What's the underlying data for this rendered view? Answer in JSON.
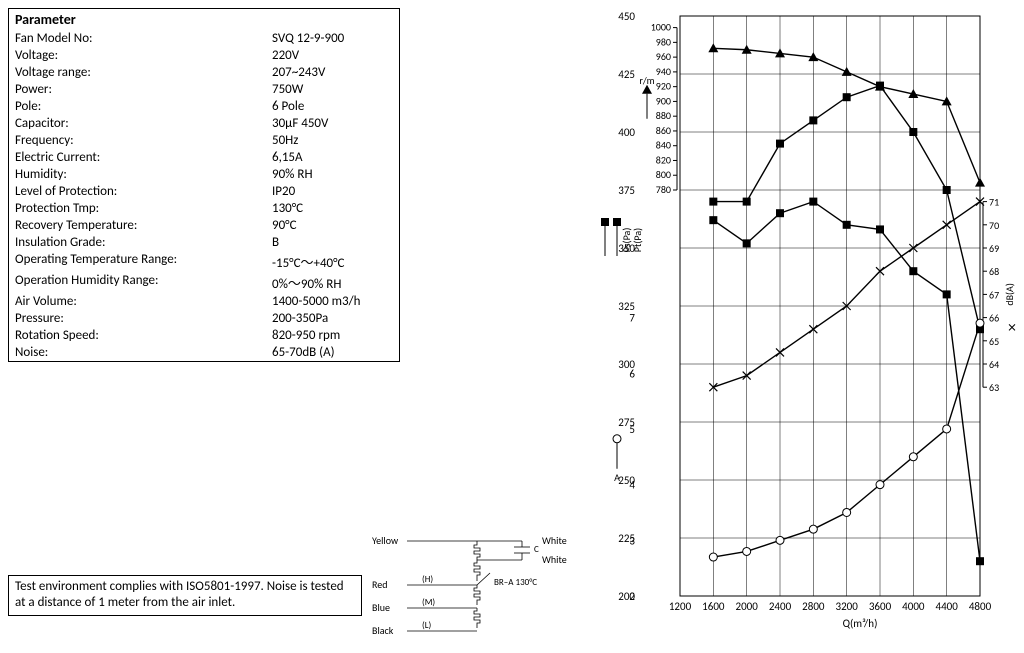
{
  "parameter_table": {
    "header": "Parameter",
    "rows": [
      {
        "label": "Fan Model No:",
        "value": "SVQ 12-9-900"
      },
      {
        "label": "Voltage:",
        "value": "220V"
      },
      {
        "label": "Voltage range:",
        "value": "207~243V"
      },
      {
        "label": "Power:",
        "value": "750W"
      },
      {
        "label": "Pole:",
        "value": "6 Pole"
      },
      {
        "label": "Capacitor:",
        "value": "30μF 450V"
      },
      {
        "label": "Frequency:",
        "value": "50Hz"
      },
      {
        "label": "Electric Current:",
        "value": "6,15A"
      },
      {
        "label": "Humidity:",
        "value": "90% RH"
      },
      {
        "label": "Level of Protection:",
        "value": "IP20"
      },
      {
        "label": "Protection Tmp:",
        "value": "130°C"
      },
      {
        "label": "Recovery Temperature:",
        "value": "90°C"
      },
      {
        "label": "Insulation Grade:",
        "value": "B"
      },
      {
        "label": "Operating Temperature Range:",
        "value": "-15°C～+40°C"
      },
      {
        "label": "Operation Humidity Range:",
        "value": "0%～90% RH"
      },
      {
        "label": "Air Volume:",
        "value": "1400-5000 m3/h"
      },
      {
        "label": "Pressure:",
        "value": "200-350Pa"
      },
      {
        "label": "Rotation Speed:",
        "value": "820-950 rpm"
      },
      {
        "label": "Noise:",
        "value": "65-70dB (A)"
      }
    ]
  },
  "wiring": {
    "labels": {
      "yellow": "Yellow",
      "white1": "White",
      "white2": "White",
      "red": "Red",
      "blue": "Blue",
      "black": "Black",
      "h": "(H)",
      "m": "(M)",
      "l": "(L)",
      "c": "C",
      "breaker": "BR–A 130°C"
    },
    "line_color": "#000000",
    "text_color": "#000000"
  },
  "note": "Test environment complies with ISO5801-1997. Noise is tested at a distance of 1 meter from the air inlet.",
  "chart": {
    "type": "multi-axis-line",
    "background_color": "#ffffff",
    "grid_color": "#000000",
    "grid_stroke": 0.5,
    "axis_stroke": 1,
    "font_size": 11,
    "line_color": "#000000",
    "xlabel": "Q(m³/h)",
    "x": {
      "min": 1200,
      "max": 4800,
      "step": 400
    },
    "y_pa": {
      "label": "",
      "min": 200,
      "max": 450,
      "step": 25,
      "side": "left-outer"
    },
    "y_rpm": {
      "label": "",
      "min": 780,
      "max": 1000,
      "step": 20,
      "side": "left-inner"
    },
    "y_amp": {
      "label": "",
      "min": 2,
      "max": 7,
      "step": 1,
      "side": "left-bottom"
    },
    "y_db": {
      "label": "",
      "min": 63,
      "max": 71,
      "step": 1,
      "side": "right"
    },
    "axis_legends": {
      "rpm": "r/m",
      "ps": "Ps(Pa)",
      "pt": "Pt(Pa)",
      "amp": "A",
      "db": "dB(A)"
    },
    "series": {
      "rpm": {
        "marker": "triangle",
        "axis": "y_rpm",
        "points": [
          [
            1600,
            972
          ],
          [
            2000,
            970
          ],
          [
            2400,
            965
          ],
          [
            2800,
            960
          ],
          [
            3200,
            940
          ],
          [
            3600,
            920
          ],
          [
            4000,
            910
          ],
          [
            4400,
            900
          ],
          [
            4800,
            790
          ]
        ]
      },
      "pt": {
        "marker": "square",
        "axis": "y_pa",
        "label": "Pt(Pa)",
        "points": [
          [
            1600,
            370
          ],
          [
            2000,
            370
          ],
          [
            2400,
            395
          ],
          [
            2800,
            405
          ],
          [
            3200,
            415
          ],
          [
            3600,
            420
          ],
          [
            4000,
            400
          ],
          [
            4400,
            375
          ],
          [
            4800,
            315
          ]
        ]
      },
      "ps": {
        "marker": "square",
        "axis": "y_pa",
        "label": "Ps(Pa)",
        "points": [
          [
            1600,
            362
          ],
          [
            2000,
            352
          ],
          [
            2400,
            365
          ],
          [
            2800,
            370
          ],
          [
            3200,
            360
          ],
          [
            3600,
            358
          ],
          [
            4000,
            340
          ],
          [
            4400,
            330
          ],
          [
            4800,
            215
          ]
        ]
      },
      "db": {
        "marker": "cross",
        "axis": "y_db",
        "label": "dB(A)",
        "points": [
          [
            1600,
            63
          ],
          [
            2000,
            63.5
          ],
          [
            2400,
            64.5
          ],
          [
            2800,
            65.5
          ],
          [
            3200,
            66.5
          ],
          [
            3600,
            68
          ],
          [
            4000,
            69
          ],
          [
            4400,
            70
          ],
          [
            4800,
            71
          ]
        ]
      },
      "amp": {
        "marker": "circle",
        "axis": "y_amp",
        "label": "A",
        "points": [
          [
            1600,
            2.7
          ],
          [
            2000,
            2.8
          ],
          [
            2400,
            3.0
          ],
          [
            2800,
            3.2
          ],
          [
            3200,
            3.5
          ],
          [
            3600,
            4.0
          ],
          [
            4000,
            4.5
          ],
          [
            4400,
            5.0
          ],
          [
            4800,
            6.9
          ]
        ]
      }
    }
  }
}
